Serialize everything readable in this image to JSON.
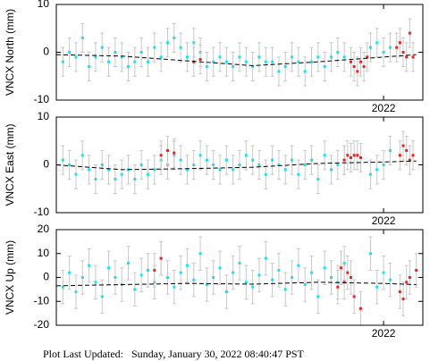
{
  "chart_data": [
    {
      "type": "scatter",
      "ylabel": "VNCX North (mm)",
      "xlim": [
        2021.0,
        2022.12
      ],
      "xticks": [
        2022
      ],
      "ylim": [
        -10,
        10
      ],
      "yticks": [
        -10,
        0,
        10
      ],
      "series": [
        {
          "kind": "points",
          "color": "#1ee0f0",
          "error": 3,
          "x": [
            2021.02,
            2021.04,
            2021.06,
            2021.08,
            2021.1,
            2021.12,
            2021.14,
            2021.16,
            2021.18,
            2021.2,
            2021.22,
            2021.24,
            2021.26,
            2021.28,
            2021.3,
            2021.32,
            2021.34,
            2021.36,
            2021.38,
            2021.4,
            2021.42,
            2021.44,
            2021.46,
            2021.48,
            2021.5,
            2021.52,
            2021.54,
            2021.56,
            2021.58,
            2021.6,
            2021.62,
            2021.64,
            2021.66,
            2021.68,
            2021.7,
            2021.72,
            2021.74,
            2021.76,
            2021.78,
            2021.8,
            2021.82,
            2021.84,
            2021.86,
            2021.88,
            2021.96,
            2021.98,
            2022.0,
            2022.02
          ],
          "values": [
            -2,
            0,
            -1,
            3,
            -3,
            -1,
            1,
            -2,
            0,
            -1,
            -3,
            -2,
            0,
            -2,
            1,
            -1,
            2,
            3,
            1,
            -1,
            2,
            0,
            -3,
            -2,
            -1,
            -2,
            -3,
            -1,
            -2,
            -3,
            -1,
            -2,
            -2,
            -4,
            -3,
            -1,
            -2,
            -4,
            -2,
            -1,
            -3,
            -1,
            0,
            -1,
            1,
            2,
            0,
            1
          ]
        },
        {
          "kind": "points",
          "color": "#f02020",
          "error": 3,
          "x": [
            2021.42,
            2021.44,
            2021.9,
            2021.91,
            2021.92,
            2021.93,
            2021.94,
            2021.95,
            2022.04,
            2022.05,
            2022.06,
            2022.07,
            2022.08,
            2022.09
          ],
          "values": [
            -2,
            -1.5,
            -2,
            -3,
            -4,
            -2,
            -3,
            -1,
            1,
            2,
            0,
            -1,
            4,
            -1
          ]
        },
        {
          "kind": "line",
          "color": "#000000",
          "x": [
            2021.0,
            2021.2,
            2021.4,
            2021.6,
            2021.8,
            2022.0,
            2022.1
          ],
          "values": [
            -0.5,
            -0.8,
            -1.8,
            -2.8,
            -2,
            -1,
            -0.5
          ]
        }
      ]
    },
    {
      "type": "scatter",
      "ylabel": "VNCX East (mm)",
      "xlim": [
        2021.0,
        2022.12
      ],
      "xticks": [
        2022
      ],
      "ylim": [
        -10,
        10
      ],
      "yticks": [
        -10,
        0,
        10
      ],
      "series": [
        {
          "kind": "points",
          "color": "#1ee0f0",
          "error": 3,
          "x": [
            2021.02,
            2021.04,
            2021.06,
            2021.08,
            2021.1,
            2021.12,
            2021.14,
            2021.16,
            2021.18,
            2021.2,
            2021.22,
            2021.24,
            2021.26,
            2021.28,
            2021.3,
            2021.32,
            2021.34,
            2021.36,
            2021.38,
            2021.4,
            2021.42,
            2021.44,
            2021.46,
            2021.48,
            2021.5,
            2021.52,
            2021.54,
            2021.56,
            2021.58,
            2021.6,
            2021.62,
            2021.64,
            2021.66,
            2021.68,
            2021.7,
            2021.72,
            2021.74,
            2021.76,
            2021.78,
            2021.8,
            2021.82,
            2021.84,
            2021.86,
            2021.88,
            2021.96,
            2021.98,
            2022.0,
            2022.02
          ],
          "values": [
            1,
            0,
            -2,
            2,
            -1,
            -3,
            0,
            -1,
            -3,
            -2,
            -1,
            -3,
            0,
            -2,
            -1,
            1,
            0,
            2,
            1,
            -1,
            0,
            2,
            1,
            0,
            -1,
            1,
            -1,
            0,
            2,
            1,
            0,
            -2,
            1,
            0,
            -1,
            1,
            -2,
            0,
            1,
            -3,
            2,
            -1,
            0,
            1,
            -2,
            -1,
            0,
            3
          ]
        },
        {
          "kind": "points",
          "color": "#f02020",
          "error": 3,
          "x": [
            2021.32,
            2021.34,
            2021.36,
            2021.88,
            2021.89,
            2021.9,
            2021.91,
            2021.92,
            2021.93,
            2022.05,
            2022.06,
            2022.07,
            2022.08,
            2022.09
          ],
          "values": [
            2,
            3,
            2.5,
            1,
            2,
            1.5,
            2,
            2,
            1.5,
            2,
            4,
            3,
            1,
            2
          ]
        },
        {
          "kind": "line",
          "color": "#000000",
          "x": [
            2021.0,
            2021.2,
            2021.4,
            2021.6,
            2021.8,
            2022.0,
            2022.1
          ],
          "values": [
            0,
            -1,
            -0.8,
            -0.5,
            0.3,
            0.6,
            0.8
          ]
        }
      ]
    },
    {
      "type": "scatter",
      "ylabel": "VNCX Up (mm)",
      "xlim": [
        2021.0,
        2022.12
      ],
      "xticks": [
        2022
      ],
      "ylim": [
        -20,
        20
      ],
      "yticks": [
        -20,
        -10,
        0,
        10,
        20
      ],
      "series": [
        {
          "kind": "points",
          "color": "#1ee0f0",
          "error": 7,
          "x": [
            2021.02,
            2021.04,
            2021.06,
            2021.08,
            2021.1,
            2021.12,
            2021.14,
            2021.16,
            2021.18,
            2021.2,
            2021.22,
            2021.24,
            2021.26,
            2021.28,
            2021.3,
            2021.32,
            2021.34,
            2021.36,
            2021.38,
            2021.4,
            2021.42,
            2021.44,
            2021.46,
            2021.48,
            2021.5,
            2021.52,
            2021.54,
            2021.56,
            2021.58,
            2021.6,
            2021.62,
            2021.64,
            2021.66,
            2021.68,
            2021.7,
            2021.72,
            2021.74,
            2021.76,
            2021.78,
            2021.8,
            2021.82,
            2021.84,
            2021.86,
            2021.88,
            2021.96,
            2021.98,
            2022.0,
            2022.02
          ],
          "values": [
            -4,
            2,
            -6,
            0,
            5,
            -2,
            -8,
            4,
            0,
            -3,
            6,
            -5,
            1,
            3,
            -2,
            8,
            0,
            -4,
            2,
            5,
            -1,
            10,
            -3,
            0,
            4,
            -6,
            2,
            6,
            -2,
            -4,
            1,
            8,
            -1,
            3,
            -5,
            0,
            5,
            -3,
            2,
            -8,
            4,
            0,
            -2,
            6,
            10,
            -4,
            2,
            -1
          ]
        },
        {
          "kind": "points",
          "color": "#f02020",
          "error": 7,
          "x": [
            2021.3,
            2021.32,
            2021.86,
            2021.87,
            2021.88,
            2021.89,
            2021.9,
            2021.91,
            2021.93,
            2022.05,
            2022.06,
            2022.07,
            2022.08,
            2022.1
          ],
          "values": [
            3,
            8,
            -4,
            4,
            -2,
            2,
            0,
            -8,
            -13,
            -6,
            -9,
            -2,
            0,
            3
          ]
        },
        {
          "kind": "line",
          "color": "#000000",
          "x": [
            2021.0,
            2021.2,
            2021.4,
            2021.6,
            2021.8,
            2022.0,
            2022.1
          ],
          "values": [
            -3.5,
            -3,
            -2.5,
            -2.8,
            -2,
            -2.5,
            -3
          ]
        }
      ]
    }
  ],
  "footer": "Plot Last Updated:   Sunday, January 30, 2022 08:40:47 PST"
}
